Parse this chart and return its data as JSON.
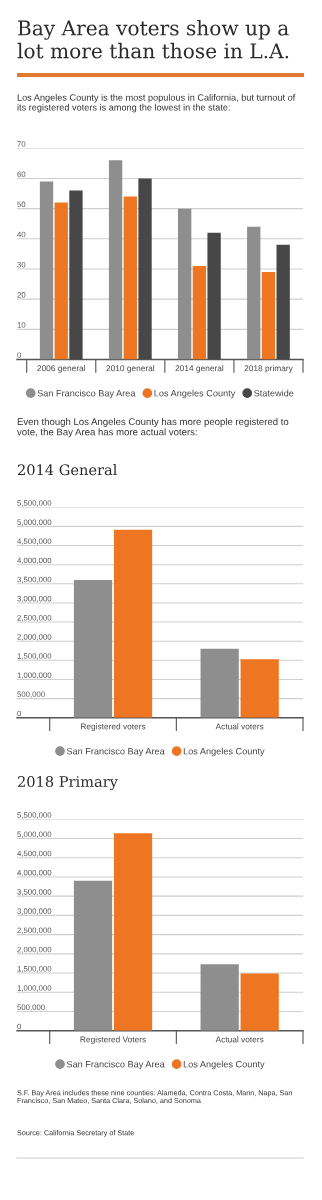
{
  "chart_data": [
    {
      "type": "bar",
      "title": "Bay Area voters show up a lot more than those in L.A.",
      "subtitle": "Los Angeles County is the most populous in California, but turnout of its registered voters is among the lowest in the state:",
      "categories": [
        "2006 general",
        "2010 general",
        "2014 general",
        "2018 primary"
      ],
      "series": [
        {
          "name": "San Francisco Bay Area",
          "color": "#8e8e8e",
          "values": [
            59,
            66,
            50,
            44
          ]
        },
        {
          "name": "Los Angeles County",
          "color": "#ee7623",
          "values": [
            52,
            54,
            31,
            29
          ]
        },
        {
          "name": "Statewide",
          "color": "#474747",
          "values": [
            56,
            60,
            42,
            38
          ]
        }
      ],
      "ylim": [
        0,
        70
      ],
      "yticks": [
        0,
        10,
        20,
        30,
        40,
        50,
        60,
        70
      ],
      "grid": "y",
      "legend": "bottom"
    },
    {
      "type": "bar",
      "annotations": [
        "Even though Los Angeles County has more people registered to vote, the Bay Area has more actual voters:"
      ],
      "title": "2014 General",
      "categories": [
        "Registered voters",
        "Actual voters"
      ],
      "series": [
        {
          "name": "San Francisco Bay Area",
          "color": "#8e8e8e",
          "values": [
            3600000,
            1800000
          ]
        },
        {
          "name": "Los Angeles County",
          "color": "#ee7623",
          "values": [
            4910000,
            1530000
          ]
        }
      ],
      "ylim": [
        0,
        5500000
      ],
      "yticks": [
        0,
        {
          "value": 500000,
          "label": "500,000"
        },
        {
          "value": 1000000,
          "label": "1,000,000"
        },
        {
          "value": 1500000,
          "label": "1,500,000"
        },
        {
          "value": 2000000,
          "label": "2,000,000"
        },
        {
          "value": 2500000,
          "label": "2,500,000"
        },
        {
          "value": 3000000,
          "label": "3,000,000"
        },
        {
          "value": 3500000,
          "label": "3,500,000"
        },
        {
          "value": 4000000,
          "label": "4,000,000"
        },
        {
          "value": 4500000,
          "label": "4,500,000"
        },
        {
          "value": 5000000,
          "label": "5,000,000"
        },
        {
          "value": 5500000,
          "label": "5,500,000"
        }
      ],
      "grid": "y",
      "legend": "bottom"
    },
    {
      "type": "bar",
      "title": "2018 Primary",
      "categories": [
        "Registered Voters",
        "Actual voters"
      ],
      "series": [
        {
          "name": "San Francisco Bay Area",
          "color": "#8e8e8e",
          "values": [
            3900000,
            1730000
          ]
        },
        {
          "name": "Los Angeles County",
          "color": "#ee7623",
          "values": [
            5140000,
            1490000
          ]
        }
      ],
      "ylim": [
        0,
        5500000
      ],
      "yticks": [
        0,
        {
          "value": 500000,
          "label": "500,000"
        },
        {
          "value": 1000000,
          "label": "1,000,000"
        },
        {
          "value": 1500000,
          "label": "1,500,000"
        },
        {
          "value": 2000000,
          "label": "2,000,000"
        },
        {
          "value": 2500000,
          "label": "2,500,000"
        },
        {
          "value": 3000000,
          "label": "3,000,000"
        },
        {
          "value": 3500000,
          "label": "3,500,000"
        },
        {
          "value": 4000000,
          "label": "4,000,000"
        },
        {
          "value": 4500000,
          "label": "4,500,000"
        },
        {
          "value": 5000000,
          "label": "5,000,000"
        },
        {
          "value": 5500000,
          "label": "5,500,000"
        }
      ],
      "grid": "y",
      "legend": "bottom",
      "annotations": [
        "S.F. Bay Area includes these nine counties: Alameda, Contra Costa, Marin, Napa, San Francisco, San Mateo, Santa Clara, Solano, and Sonoma",
        "Source: California Secretary of State"
      ]
    }
  ]
}
